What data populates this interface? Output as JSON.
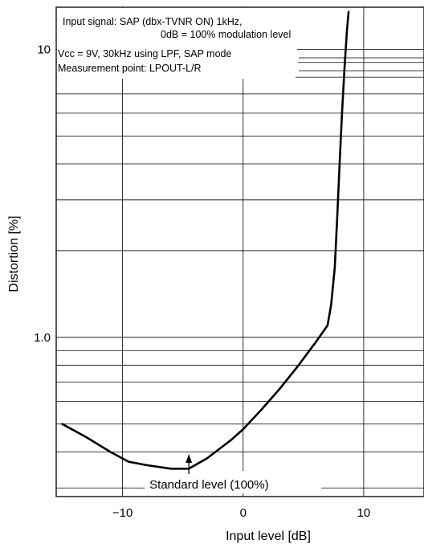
{
  "chart_data": {
    "type": "line",
    "title": "",
    "xlabel": "Input level [dB]",
    "ylabel": "Distortion [%]",
    "x_scale": "linear",
    "y_scale": "log",
    "xlim": [
      -15.5,
      15
    ],
    "ylim": [
      0.28,
      14
    ],
    "x_ticks": [
      -10,
      0,
      10
    ],
    "x_tick_labels": [
      "−10",
      "0",
      "10"
    ],
    "y_ticks": [
      1.0,
      10
    ],
    "y_tick_labels": [
      "1.0",
      "10"
    ],
    "grid": true,
    "annotations": [
      "Input signal: SAP (dbx-TVNR ON) 1kHz,",
      "0dB = 100% modulation level",
      "Vcc = 9V, 30kHz using LPF, SAP mode",
      "Measurement point: LPOUT-L/R"
    ],
    "marker_annotation": {
      "text": "Standard level (100%)",
      "x": -4.5
    },
    "series": [
      {
        "x": [
          -15,
          -13,
          -11,
          -9.5,
          -8,
          -6,
          -4.5,
          -3,
          -1,
          0,
          1.5,
          3,
          4.5,
          6,
          7,
          7.3,
          7.6,
          7.8,
          8.0,
          8.2,
          8.4,
          8.6,
          8.75
        ],
        "y": [
          0.5,
          0.45,
          0.4,
          0.37,
          0.36,
          0.35,
          0.35,
          0.38,
          0.44,
          0.48,
          0.56,
          0.66,
          0.79,
          0.96,
          1.1,
          1.3,
          1.75,
          2.6,
          4.0,
          6.0,
          8.5,
          11.5,
          13.5
        ]
      }
    ]
  }
}
